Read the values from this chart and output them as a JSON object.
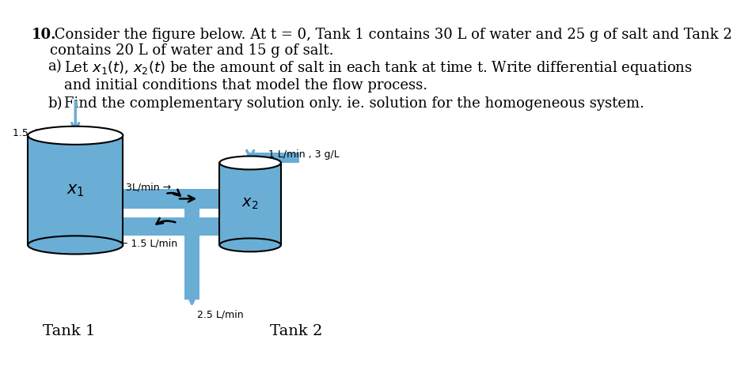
{
  "bg_color": "#ffffff",
  "text_color": "#000000",
  "blue_color": "#6aaed6",
  "title_bold": "10.",
  "title_text": " Consider the figure below. At t = 0, Tank 1 contains 30 L of water and 25 g of salt and Tank 2",
  "line2": "contains 20 L of water and 15 g of salt.",
  "part_a_label": "a)",
  "part_b_label": "b)",
  "label_in1": "1.5  L/min  1 g/L",
  "label_in2": "1 L/min , 3 g/L",
  "label_3lmin": "3L/min →",
  "label_15lmin": "← 1.5 L/min",
  "label_25lmin": "2.5 L/min",
  "label_tank1": "Tank 1",
  "label_tank2": "Tank 2",
  "label_x1": "$x_1$",
  "label_x2": "$x_2$",
  "font_size_main": 13,
  "font_size_label": 9,
  "font_size_tank_label": 14
}
